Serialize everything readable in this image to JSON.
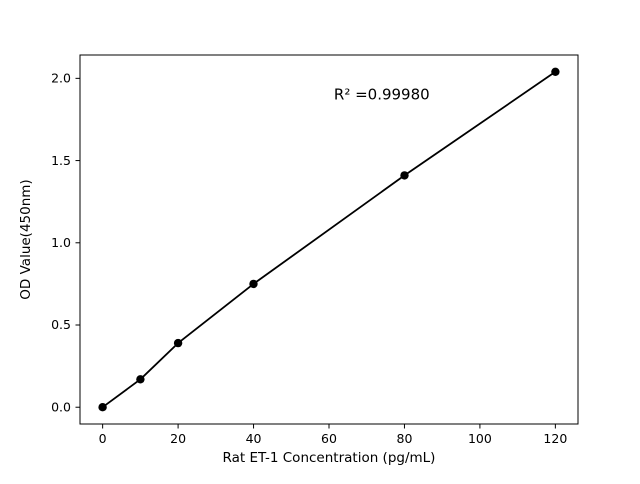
{
  "chart_data": {
    "type": "scatter",
    "series_name": "standard-curve",
    "x": [
      0,
      10,
      20,
      40,
      80,
      120
    ],
    "y": [
      0.0,
      0.17,
      0.39,
      0.75,
      1.41,
      2.04
    ],
    "xlabel": "Rat ET-1 Concentration (pg/mL)",
    "ylabel": "OD Value(450nm)",
    "xticks": [
      0,
      20,
      40,
      60,
      80,
      100,
      120
    ],
    "yticks": [
      0,
      0.5,
      1,
      1.5,
      2
    ],
    "xlim": [
      -6,
      126
    ],
    "ylim": [
      -0.102,
      2.142
    ],
    "grid": false,
    "legend": "none",
    "line_color": "#000000",
    "marker_color": "#000000",
    "frame_color": "#000000",
    "annotation": {
      "text": "R² =0.99980",
      "x": 74,
      "y": 1.87
    }
  }
}
